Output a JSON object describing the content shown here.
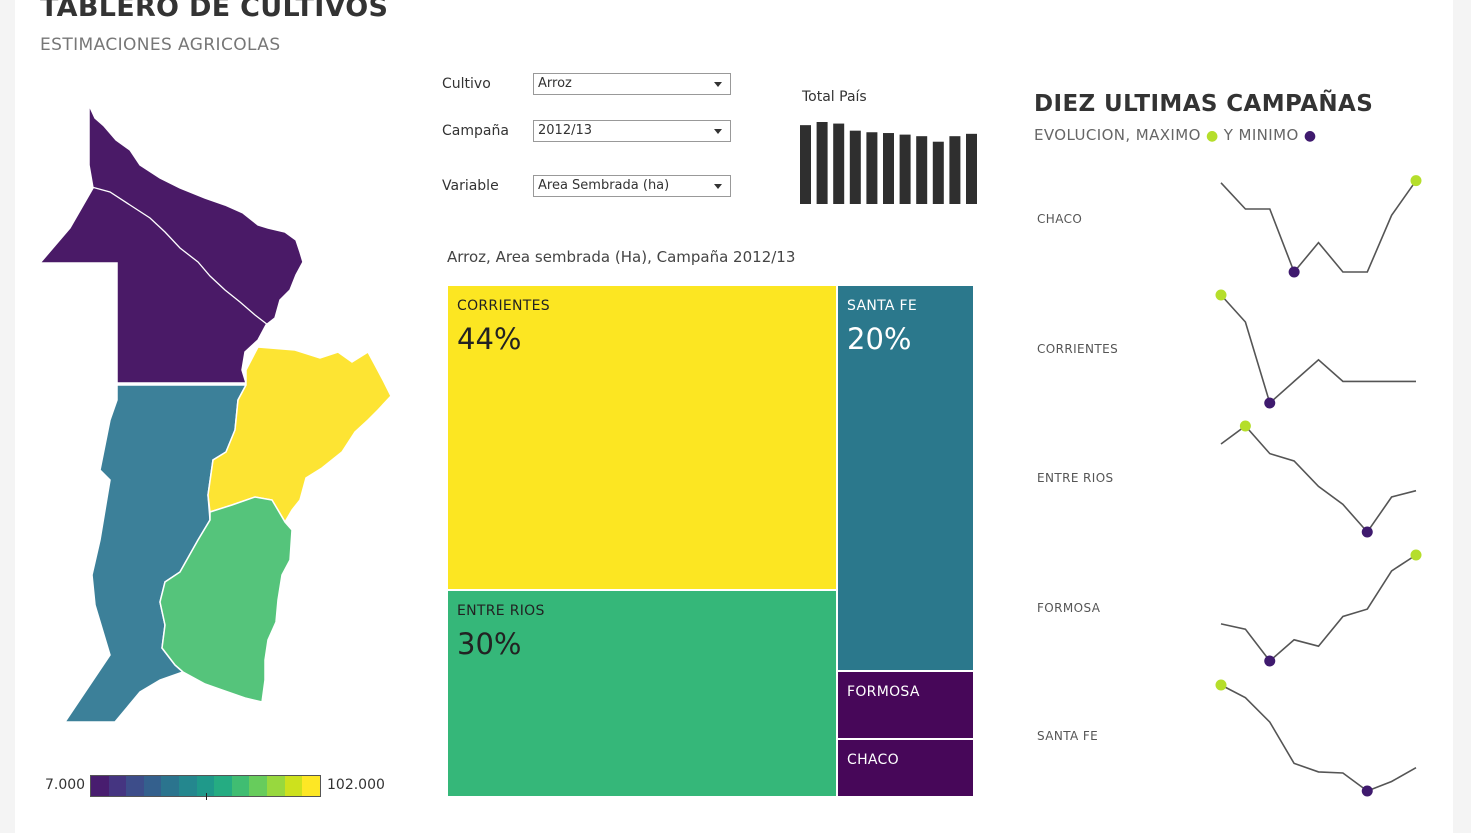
{
  "header": {
    "title": "TABLERO DE CULTIVOS",
    "subtitle": "ESTIMACIONES AGRICOLAS"
  },
  "filters": [
    {
      "label": "Cultivo",
      "value": "Arroz"
    },
    {
      "label": "Campaña",
      "value": "2012/13"
    },
    {
      "label": "Variable",
      "value": "Area Sembrada (ha)"
    }
  ],
  "total_pais": {
    "title": "Total País",
    "values": [
      10,
      10.4,
      10.2,
      9.3,
      9.1,
      9.0,
      8.8,
      8.6,
      7.9,
      8.6,
      8.9
    ]
  },
  "map": {
    "legend_min": "7.000",
    "legend_max": "102.000",
    "legend_colors": [
      "#481d6f",
      "#453581",
      "#3d4d8a",
      "#34608d",
      "#2b748e",
      "#24878e",
      "#1f998a",
      "#25ac82",
      "#40bd72",
      "#67cc5c",
      "#98d83e",
      "#cde11d",
      "#fde725"
    ],
    "provinces": [
      {
        "name": "CHACO",
        "color": "#4a1a67"
      },
      {
        "name": "CORRIENTES",
        "color": "#fde433"
      },
      {
        "name": "SANTA FE",
        "color": "#3c8099"
      },
      {
        "name": "ENTRE RIOS",
        "color": "#55c47b"
      }
    ]
  },
  "treemap": {
    "title": "Arroz, Area sembrada (Ha), Campaña 2012/13",
    "tiles": [
      {
        "name": "CORRIENTES",
        "pct": "44%",
        "color": "#fce622",
        "text": "dark"
      },
      {
        "name": "ENTRE RIOS",
        "pct": "30%",
        "color": "#35b779",
        "text": "dark"
      },
      {
        "name": "SANTA FE",
        "pct": "20%",
        "color": "#2b788c",
        "text": "light"
      },
      {
        "name": "FORMOSA",
        "pct": "",
        "color": "#470759",
        "text": "light"
      },
      {
        "name": "CHACO",
        "pct": "",
        "color": "#470759",
        "text": "light"
      }
    ]
  },
  "sparklines": {
    "title": "DIEZ ULTIMAS CAMPAÑAS",
    "subtitle_a": "EVOLUCION, MAXIMO",
    "subtitle_b": "Y MINIMO",
    "max_color": "#b5de2b",
    "min_color": "#3f1a6e",
    "series": [
      {
        "name": "CHACO",
        "values": [
          0.85,
          0.6,
          0.6,
          0.0,
          0.28,
          0.0,
          0.0,
          0.54,
          0.87
        ]
      },
      {
        "name": "CORRIENTES",
        "values": [
          1.0,
          0.75,
          0.0,
          0.2,
          0.4,
          0.2,
          0.2,
          0.2,
          0.2
        ]
      },
      {
        "name": "ENTRE RIOS",
        "values": [
          0.83,
          1.0,
          0.74,
          0.67,
          0.43,
          0.26,
          0.0,
          0.33,
          0.39
        ]
      },
      {
        "name": "FORMOSA",
        "values": [
          0.35,
          0.3,
          0.0,
          0.2,
          0.14,
          0.42,
          0.49,
          0.85,
          1.0
        ]
      },
      {
        "name": "SANTA FE",
        "values": [
          1.0,
          0.88,
          0.65,
          0.26,
          0.18,
          0.17,
          0.0,
          0.09,
          0.22
        ]
      }
    ]
  }
}
